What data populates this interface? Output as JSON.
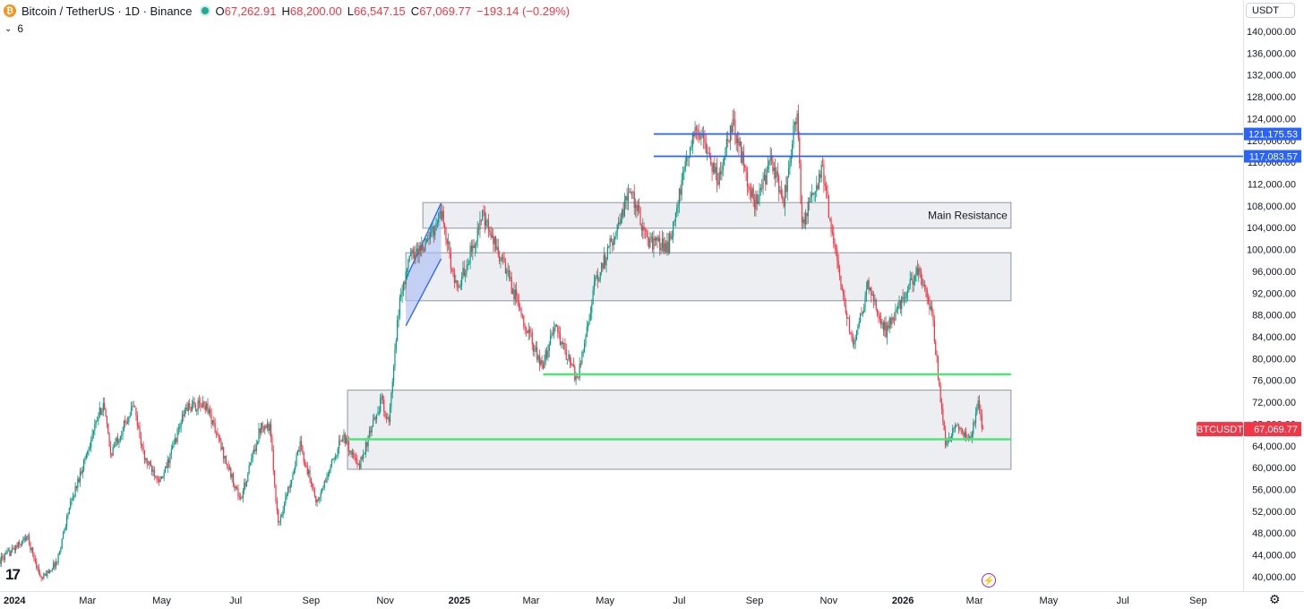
{
  "header": {
    "coin_glyph": "₿",
    "title": "Bitcoin / TetherUS · 1D · Binance",
    "o_label": "O",
    "o_value": "67,262.91",
    "h_label": "H",
    "h_value": "68,200.00",
    "l_label": "L",
    "l_value": "66,547.15",
    "c_label": "C",
    "c_value": "67,069.77",
    "change": "−193.14 (−0.29%)",
    "indicator_count": "6"
  },
  "currency_button": "USDT",
  "colors": {
    "up": "#089981",
    "down": "#f23645",
    "zone_fill": "#e9ebee",
    "zone_border": "#8c96a3",
    "blue_line": "#2962ff",
    "green_line": "#4fe37a",
    "channel_fill": "#a8bdf5",
    "channel_border": "#2962ff",
    "price_tag": "#f23645"
  },
  "chart_data": {
    "type": "candlestick",
    "symbol": "BTCUSDT",
    "interval": "1D",
    "exchange": "Binance",
    "last_price": 67069.77,
    "last_price_label": "67,069.77",
    "symbol_label": "BTCUSDT",
    "ylim": [
      38000,
      141500
    ],
    "yticks": [
      40000,
      44000,
      48000,
      52000,
      56000,
      60000,
      64000,
      68000,
      72000,
      76000,
      80000,
      84000,
      88000,
      92000,
      96000,
      100000,
      104000,
      108000,
      112000,
      116000,
      120000,
      124000,
      128000,
      132000,
      136000,
      140000
    ],
    "ytick_labels": [
      "40,000.00",
      "44,000.00",
      "48,000.00",
      "52,000.00",
      "56,000.00",
      "60,000.00",
      "64,000.00",
      "68,000.00",
      "72,000.00",
      "76,000.00",
      "80,000.00",
      "84,000.00",
      "88,000.00",
      "92,000.00",
      "96,000.00",
      "100,000.00",
      "104,000.00",
      "108,000.00",
      "112,000.00",
      "116,000.00",
      "120,000.00",
      "124,000.00",
      "128,000.00",
      "132,000.00",
      "136,000.00",
      "140,000.00"
    ],
    "xlim": [
      "2023-12-20",
      "2026-10-08"
    ],
    "xticks": [
      {
        "date": "2024-01-01",
        "label": "2024",
        "bold": true
      },
      {
        "date": "2024-03-01",
        "label": "Mar",
        "bold": false
      },
      {
        "date": "2024-05-01",
        "label": "May",
        "bold": false
      },
      {
        "date": "2024-07-01",
        "label": "Jul",
        "bold": false
      },
      {
        "date": "2024-09-01",
        "label": "Sep",
        "bold": false
      },
      {
        "date": "2024-11-01",
        "label": "Nov",
        "bold": false
      },
      {
        "date": "2025-01-01",
        "label": "2025",
        "bold": true
      },
      {
        "date": "2025-03-01",
        "label": "Mar",
        "bold": false
      },
      {
        "date": "2025-05-01",
        "label": "May",
        "bold": false
      },
      {
        "date": "2025-07-01",
        "label": "Jul",
        "bold": false
      },
      {
        "date": "2025-09-01",
        "label": "Sep",
        "bold": false
      },
      {
        "date": "2025-11-01",
        "label": "Nov",
        "bold": false
      },
      {
        "date": "2026-01-01",
        "label": "2026",
        "bold": true
      },
      {
        "date": "2026-03-01",
        "label": "Mar",
        "bold": false
      },
      {
        "date": "2026-05-01",
        "label": "May",
        "bold": false
      },
      {
        "date": "2026-07-01",
        "label": "Jul",
        "bold": false
      },
      {
        "date": "2026-09-01",
        "label": "Sep",
        "bold": false
      }
    ],
    "price_path": [
      [
        "2023-12-20",
        43000
      ],
      [
        "2024-01-08",
        46500
      ],
      [
        "2024-01-11",
        47500
      ],
      [
        "2024-01-23",
        39500
      ],
      [
        "2024-02-05",
        42800
      ],
      [
        "2024-02-14",
        51800
      ],
      [
        "2024-03-05",
        66000
      ],
      [
        "2024-03-14",
        72000
      ],
      [
        "2024-03-20",
        62500
      ],
      [
        "2024-04-08",
        71500
      ],
      [
        "2024-04-17",
        61500
      ],
      [
        "2024-05-01",
        57500
      ],
      [
        "2024-05-21",
        71000
      ],
      [
        "2024-06-07",
        71500
      ],
      [
        "2024-06-24",
        60500
      ],
      [
        "2024-07-05",
        54000
      ],
      [
        "2024-07-22",
        68000
      ],
      [
        "2024-07-29",
        67500
      ],
      [
        "2024-08-05",
        49500
      ],
      [
        "2024-08-23",
        64000
      ],
      [
        "2024-09-06",
        53500
      ],
      [
        "2024-09-27",
        66000
      ],
      [
        "2024-10-10",
        60000
      ],
      [
        "2024-10-29",
        72500
      ],
      [
        "2024-11-04",
        68000
      ],
      [
        "2024-11-13",
        91000
      ],
      [
        "2024-11-22",
        99000
      ],
      [
        "2024-12-05",
        101000
      ],
      [
        "2024-12-17",
        107000
      ],
      [
        "2024-12-30",
        92000
      ],
      [
        "2025-01-20",
        106000
      ],
      [
        "2025-02-05",
        98000
      ],
      [
        "2025-02-25",
        86000
      ],
      [
        "2025-03-10",
        78000
      ],
      [
        "2025-03-20",
        86000
      ],
      [
        "2025-04-08",
        76000
      ],
      [
        "2025-04-22",
        93000
      ],
      [
        "2025-05-22",
        111000
      ],
      [
        "2025-06-05",
        101500
      ],
      [
        "2025-06-22",
        100500
      ],
      [
        "2025-07-14",
        123000
      ],
      [
        "2025-08-02",
        113000
      ],
      [
        "2025-08-14",
        123500
      ],
      [
        "2025-09-01",
        108000
      ],
      [
        "2025-09-15",
        116000
      ],
      [
        "2025-09-25",
        109000
      ],
      [
        "2025-10-06",
        126000
      ],
      [
        "2025-10-10",
        104000
      ],
      [
        "2025-10-27",
        115000
      ],
      [
        "2025-11-05",
        101000
      ],
      [
        "2025-11-21",
        81500
      ],
      [
        "2025-12-03",
        93500
      ],
      [
        "2025-12-18",
        85000
      ],
      [
        "2026-01-14",
        97000
      ],
      [
        "2026-01-25",
        88000
      ],
      [
        "2026-02-05",
        64000
      ],
      [
        "2026-02-15",
        68500
      ],
      [
        "2026-02-24",
        64500
      ],
      [
        "2026-03-04",
        71500
      ],
      [
        "2026-03-08",
        67069.77
      ]
    ],
    "horizontal_lines": [
      {
        "price": 121175.53,
        "label": "121,175.53",
        "from": "2025-06-10",
        "to": "2026-10-08",
        "color": "#2962ff"
      },
      {
        "price": 117083.57,
        "label": "117,083.57",
        "from": "2025-06-10",
        "to": "2026-10-08",
        "color": "#2962ff"
      },
      {
        "price": 77100,
        "from": "2025-03-11",
        "to": "2026-03-31",
        "color": "#4fe37a"
      },
      {
        "price": 65200,
        "from": "2024-10-01",
        "to": "2026-03-31",
        "color": "#4fe37a"
      }
    ],
    "zones": [
      {
        "name": "Main Resistance",
        "label": "Main Resistance",
        "from": "2024-12-02",
        "to": "2026-03-31",
        "top": 108600,
        "bottom": 103900
      },
      {
        "name": "upper-zone",
        "from": "2024-11-18",
        "to": "2026-03-31",
        "top": 99400,
        "bottom": 90600
      },
      {
        "name": "lower-zone",
        "from": "2024-10-01",
        "to": "2026-03-31",
        "top": 74200,
        "bottom": 59700
      }
    ],
    "channel": {
      "from": "2024-11-18",
      "to": "2024-12-17",
      "low_start": 86000,
      "low_end": 98300,
      "high_start": 94600,
      "high_end": 108500
    }
  }
}
